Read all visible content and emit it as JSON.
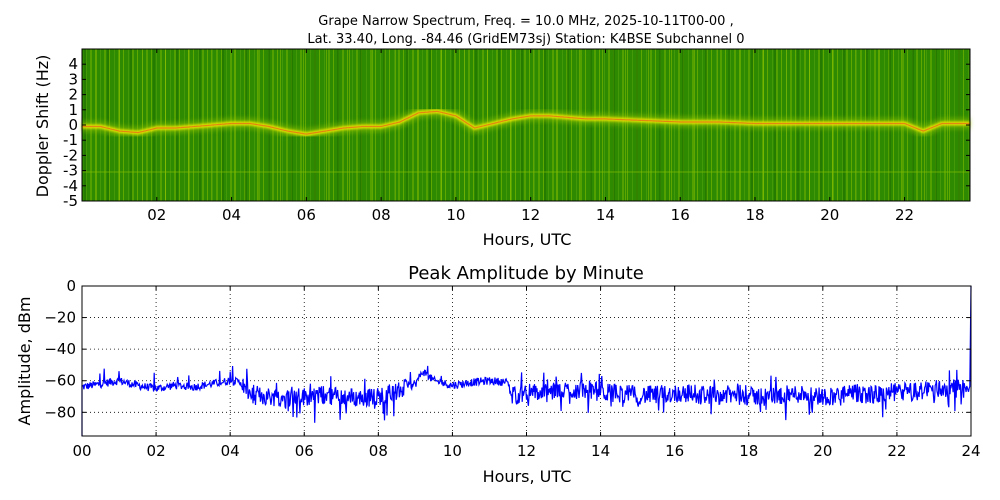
{
  "title_line1": "Grape Narrow Spectrum, Freq. = 10.0 MHz, 2025-10-11T00-00 ,",
  "title_line2": "Lat.  33.40, Long. -84.46 (GridEM73sj) Station: K4BSE Subchannel 0",
  "chart_data": [
    {
      "type": "heatmap",
      "title": "",
      "xlabel": "Hours, UTC",
      "ylabel": "Doppler Shift (Hz)",
      "xlim": [
        0,
        23.75
      ],
      "ylim": [
        -5,
        5
      ],
      "xticks": [
        "02",
        "04",
        "06",
        "08",
        "10",
        "12",
        "14",
        "16",
        "18",
        "20",
        "22"
      ],
      "yticks": [
        "4",
        "3",
        "2",
        "1",
        "0",
        "-1",
        "-2",
        "-3",
        "-4",
        "-5"
      ],
      "colors": {
        "background": "#2e8a00",
        "mid": "#8fc400",
        "high": "#f2e600",
        "peak": "#e8401c"
      },
      "trace": {
        "hours": [
          0,
          0.5,
          1,
          1.5,
          2,
          2.5,
          3,
          3.5,
          4,
          4.5,
          5,
          5.5,
          6,
          6.5,
          7,
          7.5,
          8,
          8.5,
          9,
          9.5,
          10,
          10.5,
          11,
          11.5,
          12,
          12.5,
          13,
          13.5,
          14,
          15,
          16,
          17,
          18,
          19,
          20,
          21,
          22,
          22.5,
          23,
          23.75
        ],
        "doppler_hz": [
          -0.1,
          -0.1,
          -0.4,
          -0.5,
          -0.2,
          -0.2,
          -0.1,
          0,
          0.1,
          0.1,
          -0.1,
          -0.4,
          -0.6,
          -0.4,
          -0.2,
          -0.1,
          -0.1,
          0.2,
          0.8,
          0.9,
          0.6,
          -0.2,
          0.1,
          0.4,
          0.6,
          0.6,
          0.5,
          0.4,
          0.4,
          0.3,
          0.2,
          0.2,
          0.1,
          0.1,
          0.1,
          0.1,
          0.1,
          -0.4,
          0.1,
          0.1
        ]
      }
    },
    {
      "type": "line",
      "title": "Peak Amplitude by Minute",
      "xlabel": "Hours, UTC",
      "ylabel": "Amplitude, dBm",
      "xlim": [
        0,
        24
      ],
      "ylim": [
        -95,
        0
      ],
      "xticks": [
        "00",
        "02",
        "04",
        "06",
        "08",
        "10",
        "12",
        "14",
        "16",
        "18",
        "20",
        "22",
        "24"
      ],
      "yticks": [
        "0",
        "−20",
        "−40",
        "−60",
        "−80"
      ],
      "grid": true,
      "line_color": "#0000ff",
      "series": [
        {
          "x": [
            0,
            0.5,
            1,
            1.5,
            2,
            2.5,
            3,
            3.5,
            4,
            4.3,
            4.5,
            5,
            5.5,
            6,
            6.5,
            7,
            7.5,
            8,
            8.5,
            9,
            9.2,
            9.5,
            10,
            10.5,
            11,
            11.5,
            11.6,
            12,
            12.5,
            13,
            13.5,
            14,
            14.5,
            15,
            15.5,
            16,
            16.5,
            17,
            17.5,
            18,
            18.5,
            19,
            19.5,
            20,
            20.5,
            21,
            21.5,
            22,
            22.5,
            23,
            23.5,
            23.97,
            24
          ],
          "y": [
            -64,
            -62,
            -60,
            -63,
            -65,
            -63,
            -64,
            -62,
            -60,
            -61,
            -68,
            -70,
            -71,
            -70,
            -69,
            -70,
            -71,
            -70,
            -67,
            -62,
            -54,
            -60,
            -63,
            -61,
            -60,
            -61,
            -70,
            -67,
            -68,
            -66,
            -66,
            -67,
            -68,
            -69,
            -69,
            -68,
            -68,
            -69,
            -69,
            -70,
            -70,
            -69,
            -68,
            -70,
            -69,
            -68,
            -69,
            -67,
            -67,
            -65,
            -65,
            -65,
            0
          ]
        }
      ]
    }
  ]
}
